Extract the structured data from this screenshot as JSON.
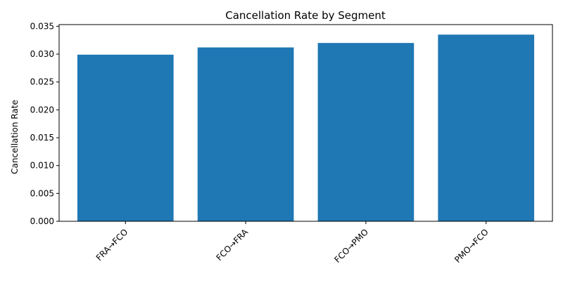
{
  "chart_data": {
    "type": "bar",
    "title": "Cancellation Rate by Segment",
    "xlabel": "",
    "ylabel": "Cancellation Rate",
    "categories": [
      "FRA→FCO",
      "FCO→FRA",
      "FCO→PMO",
      "PMO→FCO"
    ],
    "values": [
      0.0299,
      0.0312,
      0.032,
      0.0335
    ],
    "ylim": [
      0,
      0.0353
    ],
    "yticks": [
      "0.000",
      "0.005",
      "0.010",
      "0.015",
      "0.020",
      "0.025",
      "0.030",
      "0.035"
    ],
    "bar_color": "#1f77b4",
    "grid": false,
    "legend": "none"
  }
}
